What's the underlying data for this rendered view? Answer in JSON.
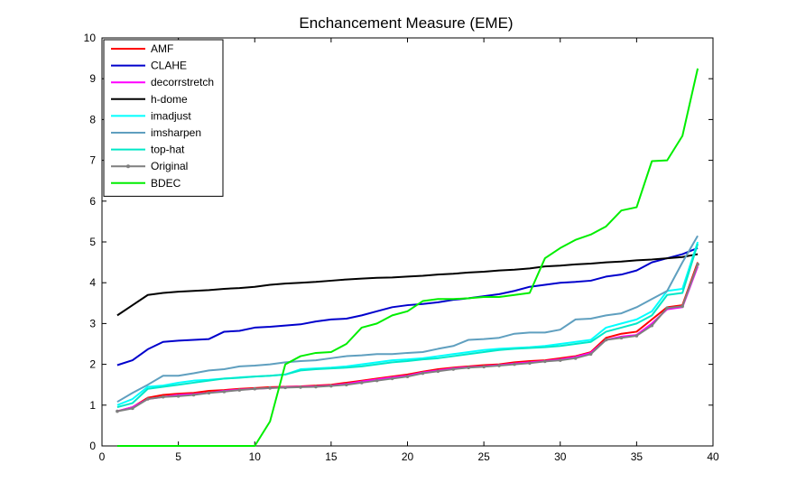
{
  "chart_data": {
    "type": "line",
    "title": "Enchancement Measure (EME)",
    "xlabel": "",
    "ylabel": "",
    "xlim": [
      0,
      40
    ],
    "ylim": [
      0,
      10
    ],
    "xticks": [
      0,
      5,
      10,
      15,
      20,
      25,
      30,
      35,
      40
    ],
    "yticks": [
      0,
      1,
      2,
      3,
      4,
      5,
      6,
      7,
      8,
      9,
      10
    ],
    "grid": false,
    "legend_position": "top-left",
    "x": [
      1,
      2,
      3,
      4,
      5,
      6,
      7,
      8,
      9,
      10,
      11,
      12,
      13,
      14,
      15,
      16,
      17,
      18,
      19,
      20,
      21,
      22,
      23,
      24,
      25,
      26,
      27,
      28,
      29,
      30,
      31,
      32,
      33,
      34,
      35,
      36,
      37,
      38,
      39
    ],
    "series": [
      {
        "name": "AMF",
        "color": "#ff0000",
        "marker": false,
        "values": [
          0.85,
          0.95,
          1.18,
          1.25,
          1.28,
          1.3,
          1.35,
          1.37,
          1.4,
          1.42,
          1.44,
          1.45,
          1.46,
          1.48,
          1.5,
          1.55,
          1.6,
          1.65,
          1.7,
          1.75,
          1.82,
          1.88,
          1.92,
          1.95,
          1.98,
          2.0,
          2.05,
          2.08,
          2.1,
          2.15,
          2.2,
          2.3,
          2.65,
          2.75,
          2.8,
          3.1,
          3.4,
          3.45,
          4.5
        ]
      },
      {
        "name": "CLAHE",
        "color": "#0000cc",
        "marker": false,
        "values": [
          1.98,
          2.1,
          2.37,
          2.55,
          2.58,
          2.6,
          2.62,
          2.8,
          2.82,
          2.9,
          2.92,
          2.95,
          2.98,
          3.05,
          3.1,
          3.12,
          3.2,
          3.3,
          3.4,
          3.45,
          3.48,
          3.52,
          3.58,
          3.62,
          3.67,
          3.72,
          3.8,
          3.9,
          3.95,
          4.0,
          4.02,
          4.05,
          4.15,
          4.2,
          4.3,
          4.5,
          4.6,
          4.7,
          4.85
        ]
      },
      {
        "name": "decorrstretch",
        "color": "#ff00ff",
        "marker": false,
        "values": [
          0.85,
          0.95,
          1.15,
          1.2,
          1.25,
          1.27,
          1.3,
          1.35,
          1.38,
          1.4,
          1.42,
          1.44,
          1.45,
          1.46,
          1.48,
          1.52,
          1.58,
          1.63,
          1.68,
          1.72,
          1.8,
          1.85,
          1.9,
          1.93,
          1.95,
          1.98,
          2.02,
          2.05,
          2.08,
          2.12,
          2.18,
          2.28,
          2.6,
          2.68,
          2.72,
          3.0,
          3.35,
          3.4,
          4.4
        ]
      },
      {
        "name": "h-dome",
        "color": "#000000",
        "marker": false,
        "values": [
          3.2,
          3.45,
          3.7,
          3.75,
          3.78,
          3.8,
          3.82,
          3.85,
          3.87,
          3.9,
          3.95,
          3.98,
          4.0,
          4.02,
          4.05,
          4.08,
          4.1,
          4.12,
          4.13,
          4.15,
          4.17,
          4.2,
          4.22,
          4.25,
          4.27,
          4.3,
          4.32,
          4.35,
          4.4,
          4.42,
          4.45,
          4.47,
          4.5,
          4.52,
          4.55,
          4.57,
          4.6,
          4.63,
          4.7
        ]
      },
      {
        "name": "imadjust",
        "color": "#00ffff",
        "marker": false,
        "values": [
          1.0,
          1.15,
          1.45,
          1.48,
          1.55,
          1.6,
          1.62,
          1.65,
          1.68,
          1.7,
          1.72,
          1.75,
          1.88,
          1.9,
          1.92,
          1.95,
          2.0,
          2.05,
          2.1,
          2.12,
          2.15,
          2.2,
          2.25,
          2.3,
          2.35,
          2.38,
          2.4,
          2.42,
          2.45,
          2.5,
          2.55,
          2.6,
          2.9,
          3.0,
          3.1,
          3.3,
          3.8,
          3.85,
          5.0
        ]
      },
      {
        "name": "imsharpen",
        "color": "#5f9fbf",
        "marker": false,
        "values": [
          1.08,
          1.3,
          1.5,
          1.72,
          1.72,
          1.78,
          1.85,
          1.88,
          1.95,
          1.97,
          2.0,
          2.05,
          2.08,
          2.1,
          2.15,
          2.2,
          2.22,
          2.25,
          2.25,
          2.28,
          2.3,
          2.38,
          2.45,
          2.6,
          2.62,
          2.65,
          2.75,
          2.78,
          2.78,
          2.85,
          3.1,
          3.12,
          3.2,
          3.25,
          3.4,
          3.6,
          3.8,
          4.5,
          5.15
        ]
      },
      {
        "name": "top-hat",
        "color": "#00e8c8",
        "marker": false,
        "values": [
          0.95,
          1.05,
          1.4,
          1.45,
          1.5,
          1.55,
          1.6,
          1.65,
          1.67,
          1.7,
          1.72,
          1.75,
          1.85,
          1.88,
          1.9,
          1.92,
          1.95,
          2.0,
          2.05,
          2.08,
          2.12,
          2.15,
          2.2,
          2.25,
          2.3,
          2.35,
          2.38,
          2.4,
          2.42,
          2.45,
          2.5,
          2.55,
          2.8,
          2.9,
          3.0,
          3.2,
          3.7,
          3.75,
          4.95
        ]
      },
      {
        "name": "Original",
        "color": "#7f7f7f",
        "marker": true,
        "values": [
          0.85,
          0.92,
          1.15,
          1.2,
          1.22,
          1.25,
          1.3,
          1.33,
          1.37,
          1.4,
          1.42,
          1.43,
          1.44,
          1.45,
          1.47,
          1.5,
          1.55,
          1.6,
          1.65,
          1.7,
          1.78,
          1.83,
          1.88,
          1.92,
          1.94,
          1.97,
          2.0,
          2.03,
          2.07,
          2.1,
          2.15,
          2.25,
          2.6,
          2.65,
          2.7,
          2.95,
          3.38,
          3.42,
          4.45
        ]
      },
      {
        "name": "BDEC",
        "color": "#00ee00",
        "marker": false,
        "values": [
          0,
          0,
          0,
          0,
          0,
          0,
          0,
          0,
          0,
          0,
          0.6,
          2.0,
          2.2,
          2.28,
          2.3,
          2.5,
          2.9,
          3.0,
          3.2,
          3.3,
          3.55,
          3.6,
          3.6,
          3.62,
          3.65,
          3.65,
          3.7,
          3.75,
          4.6,
          4.85,
          5.05,
          5.18,
          5.38,
          5.77,
          5.85,
          6.98,
          7.0,
          7.6,
          9.25
        ]
      }
    ]
  }
}
